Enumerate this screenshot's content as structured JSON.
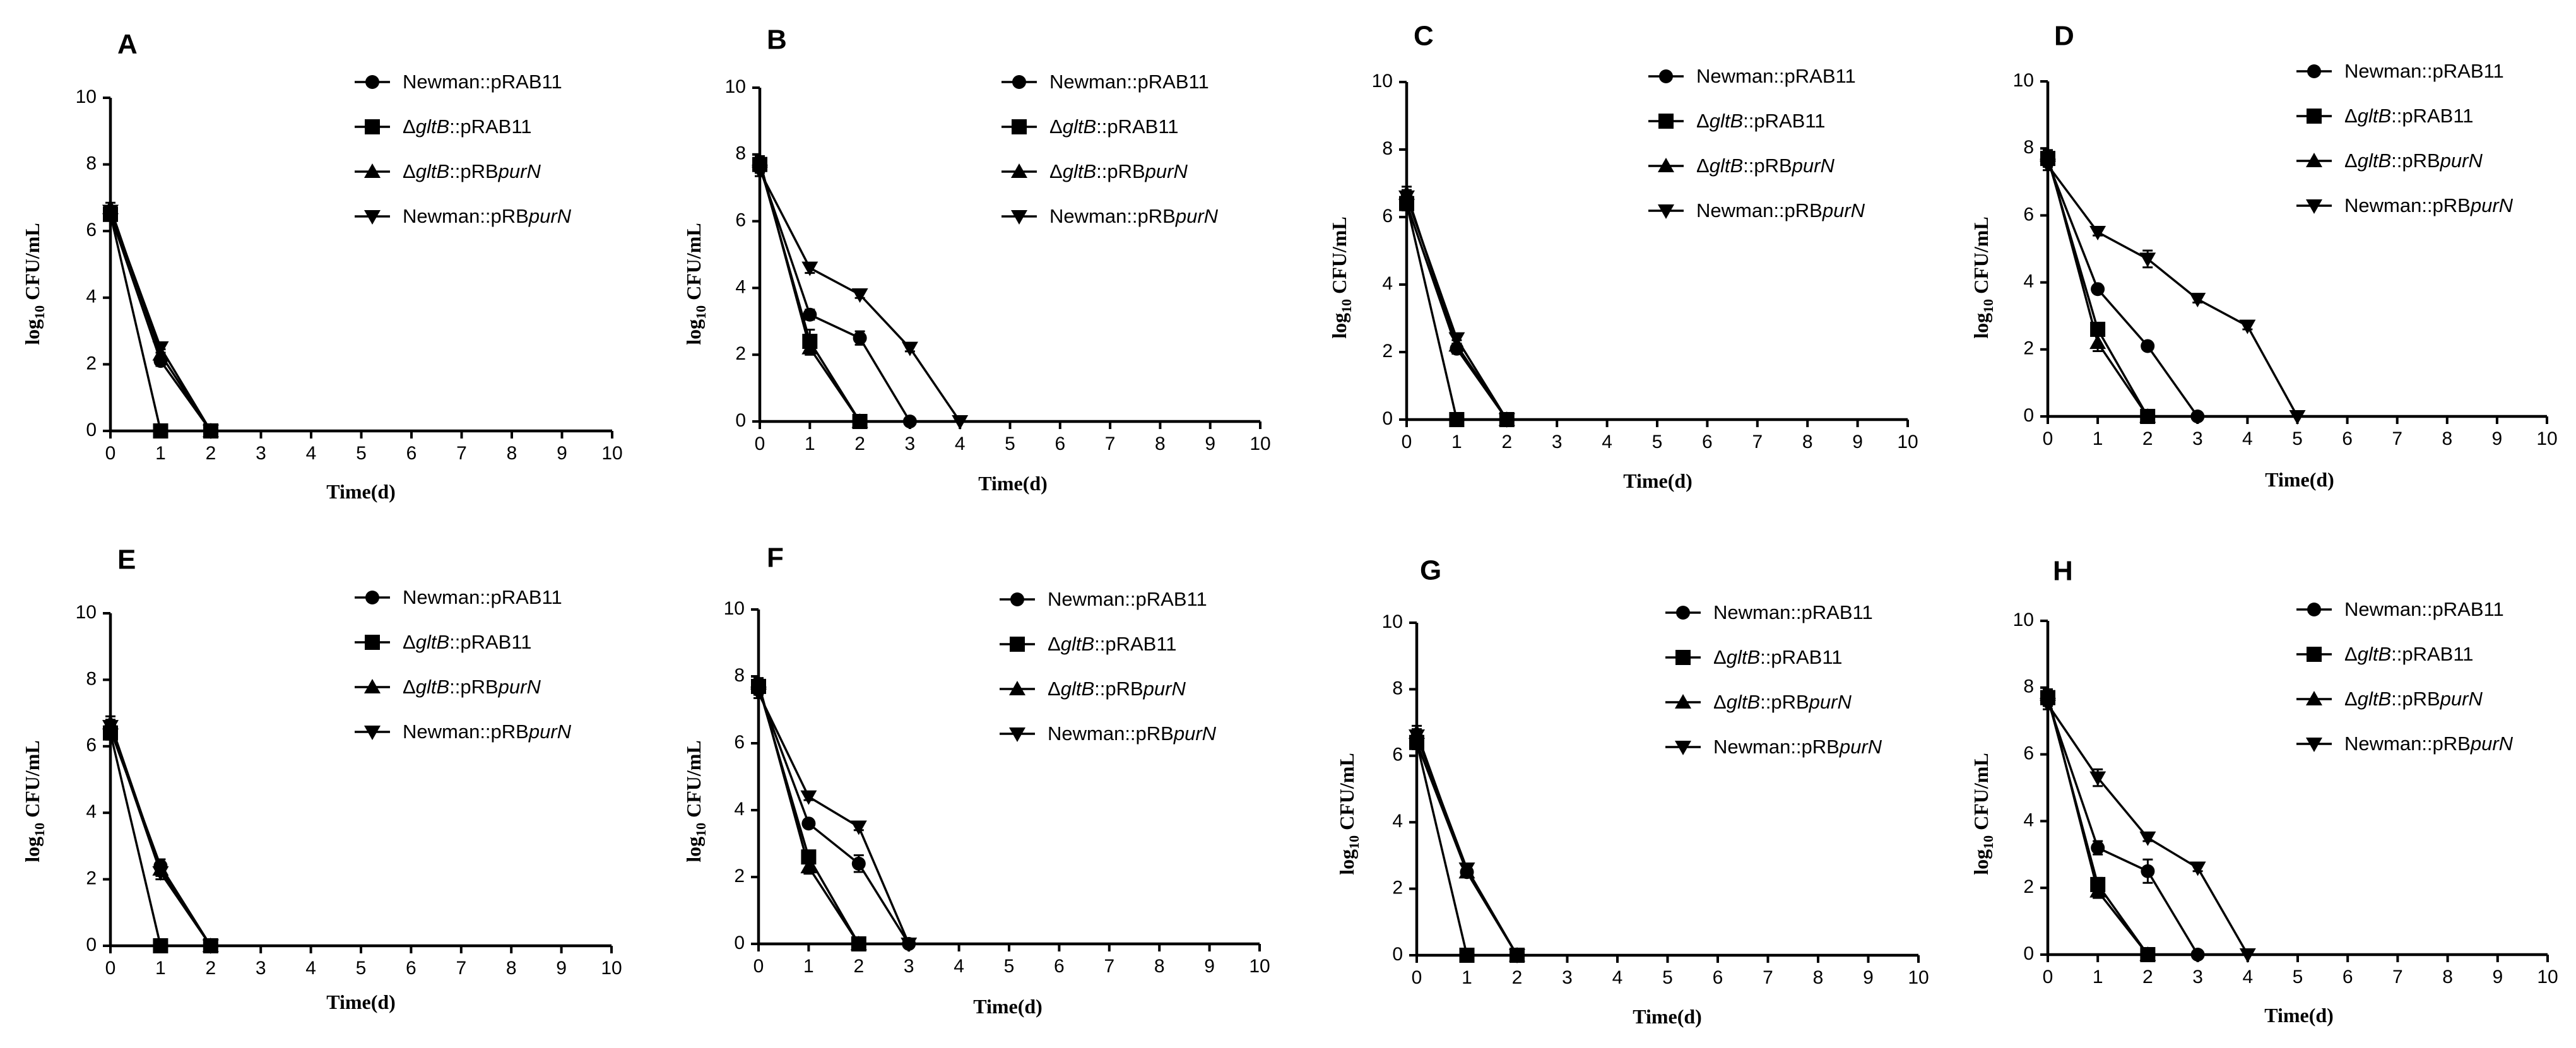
{
  "chart_data": [
    {
      "type": "line",
      "panel": "A",
      "xlabel": "Time(d)",
      "ylabel": "log10 CFU/mL",
      "xlim": [
        0,
        10
      ],
      "ylim": [
        0,
        10
      ],
      "xticks": [
        0,
        1,
        2,
        3,
        4,
        5,
        6,
        7,
        8,
        9,
        10
      ],
      "yticks": [
        0,
        2,
        4,
        6,
        8,
        10
      ],
      "series": [
        {
          "name": "Newman::pRAB11",
          "marker": "circle",
          "x": [
            0,
            1,
            2
          ],
          "y": [
            6.5,
            2.1,
            0
          ],
          "err": [
            0.15,
            0.15,
            0
          ]
        },
        {
          "name": "ΔgltB::pRAB11",
          "marker": "square",
          "x": [
            0,
            1,
            2
          ],
          "y": [
            6.5,
            0,
            0
          ],
          "err": [
            0.15,
            0,
            0
          ]
        },
        {
          "name": "ΔgltB::pRBpurN",
          "marker": "triangle-up",
          "x": [
            0,
            1,
            2
          ],
          "y": [
            6.7,
            2.3,
            0
          ],
          "err": [
            0.15,
            0.15,
            0
          ]
        },
        {
          "name": "Newman::pRBpurN",
          "marker": "triangle-down",
          "x": [
            0,
            1,
            2
          ],
          "y": [
            6.6,
            2.5,
            0
          ],
          "err": [
            0.15,
            0.15,
            0
          ]
        }
      ]
    },
    {
      "type": "line",
      "panel": "B",
      "xlabel": "Time(d)",
      "ylabel": "log10 CFU/mL",
      "xlim": [
        0,
        10
      ],
      "ylim": [
        0,
        10
      ],
      "xticks": [
        0,
        1,
        2,
        3,
        4,
        5,
        6,
        7,
        8,
        9,
        10
      ],
      "yticks": [
        0,
        2,
        4,
        6,
        8,
        10
      ],
      "series": [
        {
          "name": "Newman::pRAB11",
          "marker": "circle",
          "x": [
            0,
            1,
            2,
            3
          ],
          "y": [
            7.6,
            3.2,
            2.5,
            0
          ],
          "err": [
            0.15,
            0.15,
            0.2,
            0
          ]
        },
        {
          "name": "ΔgltB::pRAB11",
          "marker": "square",
          "x": [
            0,
            1,
            2
          ],
          "y": [
            7.7,
            2.4,
            0
          ],
          "err": [
            0.15,
            0.35,
            0
          ]
        },
        {
          "name": "ΔgltB::pRBpurN",
          "marker": "triangle-up",
          "x": [
            0,
            1,
            2
          ],
          "y": [
            7.8,
            2.2,
            0
          ],
          "err": [
            0.15,
            0.2,
            0
          ]
        },
        {
          "name": "Newman::pRBpurN",
          "marker": "triangle-down",
          "x": [
            0,
            1,
            2,
            3,
            4
          ],
          "y": [
            7.5,
            4.6,
            3.8,
            2.2,
            0
          ],
          "err": [
            0.15,
            0.15,
            0.1,
            0.1,
            0
          ]
        }
      ]
    },
    {
      "type": "line",
      "panel": "C",
      "xlabel": "Time(d)",
      "ylabel": "log10 CFU/mL",
      "xlim": [
        0,
        10
      ],
      "ylim": [
        0,
        10
      ],
      "xticks": [
        0,
        1,
        2,
        3,
        4,
        5,
        6,
        7,
        8,
        9,
        10
      ],
      "yticks": [
        0,
        2,
        4,
        6,
        8,
        10
      ],
      "series": [
        {
          "name": "Newman::pRAB11",
          "marker": "circle",
          "x": [
            0,
            1,
            2
          ],
          "y": [
            6.4,
            2.1,
            0
          ],
          "err": [
            0.2,
            0.15,
            0
          ]
        },
        {
          "name": "ΔgltB::pRAB11",
          "marker": "square",
          "x": [
            0,
            1,
            2
          ],
          "y": [
            6.4,
            0,
            0
          ],
          "err": [
            0.2,
            0,
            0
          ]
        },
        {
          "name": "ΔgltB::pRBpurN",
          "marker": "triangle-up",
          "x": [
            0,
            1,
            2
          ],
          "y": [
            6.7,
            2.2,
            0
          ],
          "err": [
            0.2,
            0.15,
            0
          ]
        },
        {
          "name": "Newman::pRBpurN",
          "marker": "triangle-down",
          "x": [
            0,
            1,
            2
          ],
          "y": [
            6.6,
            2.4,
            0
          ],
          "err": [
            0.2,
            0.15,
            0
          ]
        }
      ]
    },
    {
      "type": "line",
      "panel": "D",
      "xlabel": "Time(d)",
      "ylabel": "log10 CFU/mL",
      "xlim": [
        0,
        10
      ],
      "ylim": [
        0,
        10
      ],
      "xticks": [
        0,
        1,
        2,
        3,
        4,
        5,
        6,
        7,
        8,
        9,
        10
      ],
      "yticks": [
        0,
        2,
        4,
        6,
        8,
        10
      ],
      "series": [
        {
          "name": "Newman::pRAB11",
          "marker": "circle",
          "x": [
            0,
            1,
            2,
            3
          ],
          "y": [
            7.6,
            3.8,
            2.1,
            0
          ],
          "err": [
            0.15,
            0.1,
            0.1,
            0
          ]
        },
        {
          "name": "ΔgltB::pRAB11",
          "marker": "square",
          "x": [
            0,
            1,
            2
          ],
          "y": [
            7.7,
            2.6,
            0
          ],
          "err": [
            0.15,
            0.15,
            0
          ]
        },
        {
          "name": "ΔgltB::pRBpurN",
          "marker": "triangle-up",
          "x": [
            0,
            1,
            2
          ],
          "y": [
            7.8,
            2.2,
            0
          ],
          "err": [
            0.15,
            0.25,
            0
          ]
        },
        {
          "name": "Newman::pRBpurN",
          "marker": "triangle-down",
          "x": [
            0,
            1,
            2,
            3,
            4,
            5
          ],
          "y": [
            7.5,
            5.5,
            4.7,
            3.5,
            2.7,
            0
          ],
          "err": [
            0.15,
            0.1,
            0.25,
            0.1,
            0.1,
            0
          ]
        }
      ]
    },
    {
      "type": "line",
      "panel": "E",
      "xlabel": "Time(d)",
      "ylabel": "log10 CFU/mL",
      "xlim": [
        0,
        10
      ],
      "ylim": [
        0,
        10
      ],
      "xticks": [
        0,
        1,
        2,
        3,
        4,
        5,
        6,
        7,
        8,
        9,
        10
      ],
      "yticks": [
        0,
        2,
        4,
        6,
        8,
        10
      ],
      "series": [
        {
          "name": "Newman::pRAB11",
          "marker": "circle",
          "x": [
            0,
            1,
            2
          ],
          "y": [
            6.5,
            2.4,
            0
          ],
          "err": [
            0.2,
            0.2,
            0
          ]
        },
        {
          "name": "ΔgltB::pRAB11",
          "marker": "square",
          "x": [
            0,
            1,
            2
          ],
          "y": [
            6.4,
            0,
            0
          ],
          "err": [
            0.2,
            0,
            0
          ]
        },
        {
          "name": "ΔgltB::pRBpurN",
          "marker": "triangle-up",
          "x": [
            0,
            1,
            2
          ],
          "y": [
            6.7,
            2.3,
            0
          ],
          "err": [
            0.2,
            0.2,
            0
          ]
        },
        {
          "name": "Newman::pRBpurN",
          "marker": "triangle-down",
          "x": [
            0,
            1,
            2
          ],
          "y": [
            6.6,
            2.2,
            0
          ],
          "err": [
            0.2,
            0.2,
            0
          ]
        }
      ]
    },
    {
      "type": "line",
      "panel": "F",
      "xlabel": "Time(d)",
      "ylabel": "log10 CFU/mL",
      "xlim": [
        0,
        10
      ],
      "ylim": [
        0,
        10
      ],
      "xticks": [
        0,
        1,
        2,
        3,
        4,
        5,
        6,
        7,
        8,
        9,
        10
      ],
      "yticks": [
        0,
        2,
        4,
        6,
        8,
        10
      ],
      "series": [
        {
          "name": "Newman::pRAB11",
          "marker": "circle",
          "x": [
            0,
            1,
            2,
            3
          ],
          "y": [
            7.6,
            3.6,
            2.4,
            0
          ],
          "err": [
            0.15,
            0.1,
            0.25,
            0
          ]
        },
        {
          "name": "ΔgltB::pRAB11",
          "marker": "square",
          "x": [
            0,
            1,
            2
          ],
          "y": [
            7.7,
            2.6,
            0
          ],
          "err": [
            0.15,
            0.15,
            0
          ]
        },
        {
          "name": "ΔgltB::pRBpurN",
          "marker": "triangle-up",
          "x": [
            0,
            1,
            2
          ],
          "y": [
            7.8,
            2.3,
            0
          ],
          "err": [
            0.15,
            0.2,
            0
          ]
        },
        {
          "name": "Newman::pRBpurN",
          "marker": "triangle-down",
          "x": [
            0,
            1,
            2,
            3
          ],
          "y": [
            7.5,
            4.4,
            3.5,
            0
          ],
          "err": [
            0.15,
            0.1,
            0.1,
            0
          ]
        }
      ]
    },
    {
      "type": "line",
      "panel": "G",
      "xlabel": "Time(d)",
      "ylabel": "log10 CFU/mL",
      "xlim": [
        0,
        10
      ],
      "ylim": [
        0,
        10
      ],
      "xticks": [
        0,
        1,
        2,
        3,
        4,
        5,
        6,
        7,
        8,
        9,
        10
      ],
      "yticks": [
        0,
        2,
        4,
        6,
        8,
        10
      ],
      "series": [
        {
          "name": "Newman::pRAB11",
          "marker": "circle",
          "x": [
            0,
            1,
            2
          ],
          "y": [
            6.4,
            2.5,
            0
          ],
          "err": [
            0.2,
            0.15,
            0
          ]
        },
        {
          "name": "ΔgltB::pRAB11",
          "marker": "square",
          "x": [
            0,
            1,
            2
          ],
          "y": [
            6.4,
            0,
            0
          ],
          "err": [
            0.2,
            0,
            0
          ]
        },
        {
          "name": "ΔgltB::pRBpurN",
          "marker": "triangle-up",
          "x": [
            0,
            1,
            2
          ],
          "y": [
            6.7,
            2.5,
            0
          ],
          "err": [
            0.2,
            0.15,
            0
          ]
        },
        {
          "name": "Newman::pRBpurN",
          "marker": "triangle-down",
          "x": [
            0,
            1,
            2
          ],
          "y": [
            6.6,
            2.6,
            0
          ],
          "err": [
            0.2,
            0.15,
            0
          ]
        }
      ]
    },
    {
      "type": "line",
      "panel": "H",
      "xlabel": "Time(d)",
      "ylabel": "log10 CFU/mL",
      "xlim": [
        0,
        10
      ],
      "ylim": [
        0,
        10
      ],
      "xticks": [
        0,
        1,
        2,
        3,
        4,
        5,
        6,
        7,
        8,
        9,
        10
      ],
      "yticks": [
        0,
        2,
        4,
        6,
        8,
        10
      ],
      "series": [
        {
          "name": "Newman::pRAB11",
          "marker": "circle",
          "x": [
            0,
            1,
            2,
            3
          ],
          "y": [
            7.6,
            3.2,
            2.5,
            0
          ],
          "err": [
            0.15,
            0.2,
            0.35,
            0
          ]
        },
        {
          "name": "ΔgltB::pRAB11",
          "marker": "square",
          "x": [
            0,
            1,
            2
          ],
          "y": [
            7.7,
            2.1,
            0
          ],
          "err": [
            0.15,
            0.2,
            0
          ]
        },
        {
          "name": "ΔgltB::pRBpurN",
          "marker": "triangle-up",
          "x": [
            0,
            1,
            2
          ],
          "y": [
            7.8,
            1.9,
            0
          ],
          "err": [
            0.15,
            0.2,
            0
          ]
        },
        {
          "name": "Newman::pRBpurN",
          "marker": "triangle-down",
          "x": [
            0,
            1,
            2,
            3,
            4
          ],
          "y": [
            7.5,
            5.3,
            3.5,
            2.6,
            0
          ],
          "err": [
            0.15,
            0.25,
            0.1,
            0.1,
            0
          ]
        }
      ]
    }
  ]
}
